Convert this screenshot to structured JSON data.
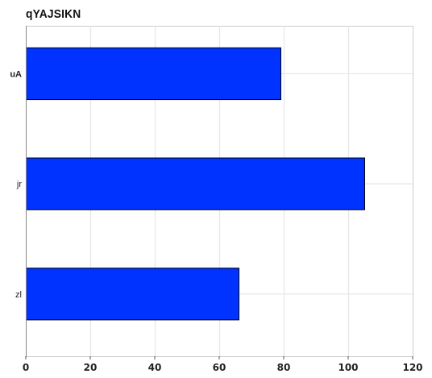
{
  "chart_data": {
    "type": "bar",
    "orientation": "horizontal",
    "title": "qYAJSIKN",
    "xlabel": "",
    "ylabel": "",
    "categories": [
      "uA",
      "jr",
      "zl"
    ],
    "values": [
      79,
      105,
      66
    ],
    "xlim": [
      0,
      120
    ],
    "xticks": [
      0,
      20,
      40,
      60,
      80,
      100,
      120
    ],
    "grid": true,
    "legend": "none",
    "bar_color": "#0033ff",
    "bar_edge_color": "#000000"
  }
}
